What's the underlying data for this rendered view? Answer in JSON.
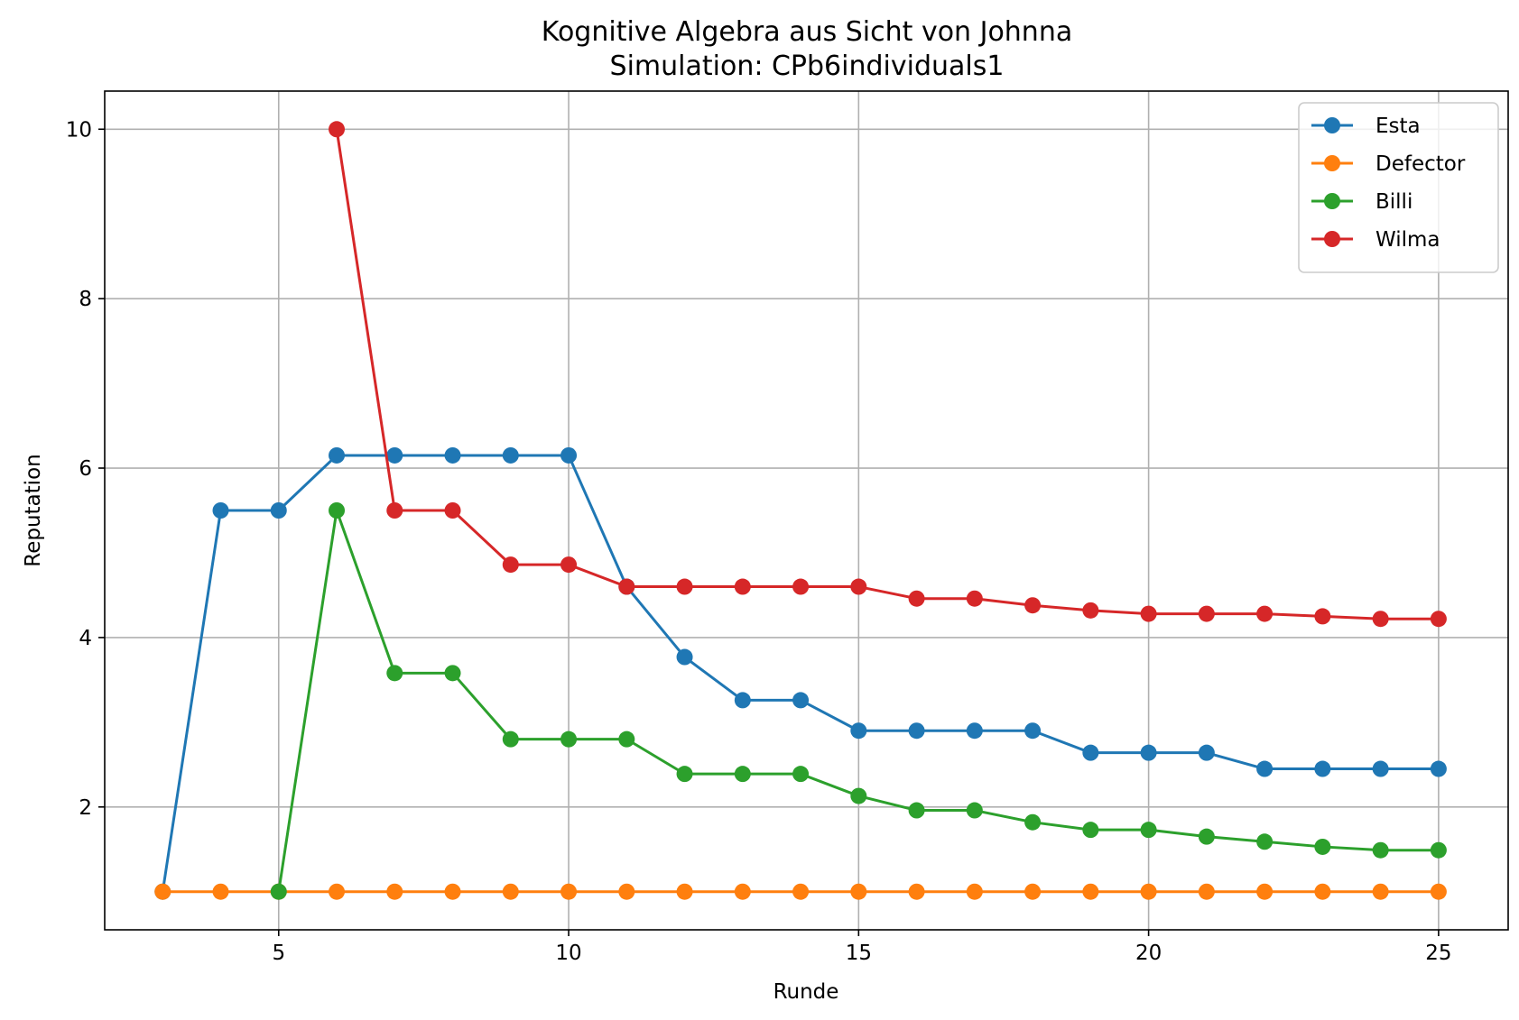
{
  "chart_data": {
    "type": "line",
    "title": "Kognitive Algebra aus Sicht von Johnna",
    "subtitle": "Simulation: CPb6individuals1",
    "xlabel": "Runde",
    "ylabel": "Reputation",
    "xlim": [
      2.0,
      26.2
    ],
    "ylim": [
      0.55,
      10.45
    ],
    "xticks": [
      5,
      10,
      15,
      20,
      25
    ],
    "yticks": [
      2,
      4,
      6,
      8,
      10
    ],
    "grid": true,
    "legend_position": "top-right",
    "series": [
      {
        "name": "Esta",
        "color": "#1f77b4",
        "x": [
          3,
          4,
          5,
          6,
          7,
          8,
          9,
          10,
          11,
          12,
          13,
          14,
          15,
          16,
          17,
          18,
          19,
          20,
          21,
          22,
          23,
          24,
          25
        ],
        "values": [
          1.0,
          5.5,
          5.5,
          6.15,
          6.15,
          6.15,
          6.15,
          6.15,
          4.6,
          3.77,
          3.26,
          3.26,
          2.9,
          2.9,
          2.9,
          2.9,
          2.64,
          2.64,
          2.64,
          2.45,
          2.45,
          2.45,
          2.45
        ]
      },
      {
        "name": "Defector",
        "color": "#ff7f0e",
        "x": [
          3,
          4,
          5,
          6,
          7,
          8,
          9,
          10,
          11,
          12,
          13,
          14,
          15,
          16,
          17,
          18,
          19,
          20,
          21,
          22,
          23,
          24,
          25
        ],
        "values": [
          1.0,
          1.0,
          1.0,
          1.0,
          1.0,
          1.0,
          1.0,
          1.0,
          1.0,
          1.0,
          1.0,
          1.0,
          1.0,
          1.0,
          1.0,
          1.0,
          1.0,
          1.0,
          1.0,
          1.0,
          1.0,
          1.0,
          1.0
        ]
      },
      {
        "name": "Billi",
        "color": "#2ca02c",
        "x": [
          5,
          6,
          7,
          8,
          9,
          10,
          11,
          12,
          13,
          14,
          15,
          16,
          17,
          18,
          19,
          20,
          21,
          22,
          23,
          24,
          25
        ],
        "values": [
          1.0,
          5.5,
          3.58,
          3.58,
          2.8,
          2.8,
          2.8,
          2.39,
          2.39,
          2.39,
          2.13,
          1.96,
          1.96,
          1.82,
          1.73,
          1.73,
          1.65,
          1.59,
          1.53,
          1.49,
          1.49
        ]
      },
      {
        "name": "Wilma",
        "color": "#d62728",
        "x": [
          6,
          7,
          8,
          9,
          10,
          11,
          12,
          13,
          14,
          15,
          16,
          17,
          18,
          19,
          20,
          21,
          22,
          23,
          24,
          25
        ],
        "values": [
          10.0,
          5.5,
          5.5,
          4.86,
          4.86,
          4.6,
          4.6,
          4.6,
          4.6,
          4.6,
          4.46,
          4.46,
          4.38,
          4.32,
          4.28,
          4.28,
          4.28,
          4.25,
          4.22,
          4.22
        ]
      }
    ]
  }
}
